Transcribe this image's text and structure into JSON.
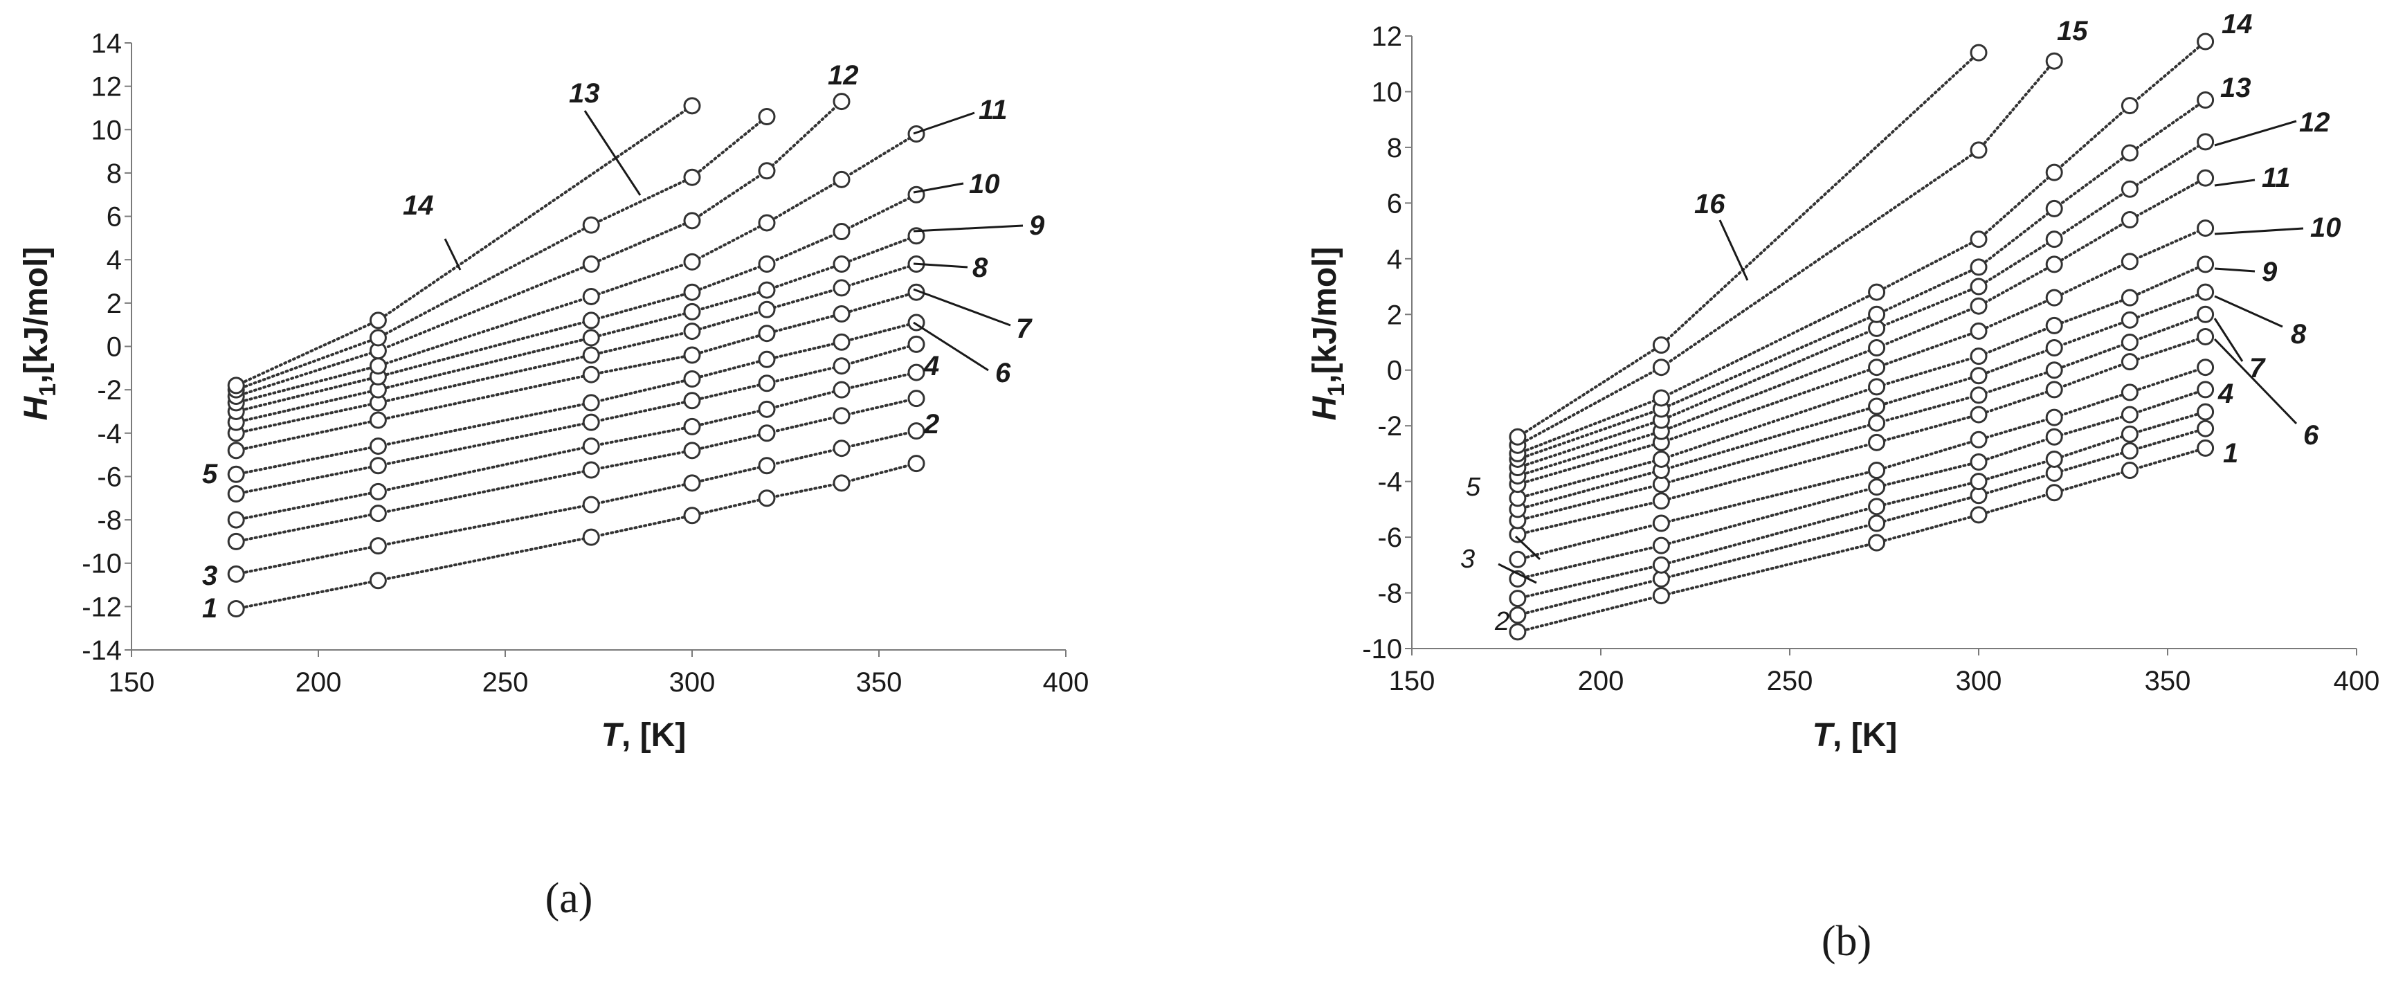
{
  "chart_data": [
    {
      "type": "scatter",
      "panel": "(a)",
      "title": "",
      "xlabel_var": "T",
      "xlabel_unit": ", [K]",
      "ylabel_var": "H",
      "ylabel_sub": "1",
      "ylabel_unit": ",[kJ/mol]",
      "xlim": [
        150,
        400
      ],
      "ylim": [
        -14,
        14
      ],
      "xticks": [
        "150",
        "200",
        "250",
        "300",
        "350",
        "400"
      ],
      "yticks": [
        "-14",
        "-12",
        "-10",
        "-8",
        "-6",
        "-4",
        "-2",
        "0",
        "2",
        "4",
        "6",
        "8",
        "10",
        "12",
        "14"
      ],
      "series": [
        {
          "name": "1",
          "x": [
            178,
            216,
            273,
            300,
            320,
            340,
            360
          ],
          "y": [
            -12.1,
            -10.8,
            -8.8,
            -7.8,
            -7.0,
            -6.3,
            -5.4
          ]
        },
        {
          "name": "2",
          "x": [
            178,
            216,
            273,
            300,
            320,
            340,
            360
          ],
          "y": [
            -10.5,
            -9.2,
            -7.3,
            -6.3,
            -5.5,
            -4.7,
            -3.9
          ]
        },
        {
          "name": "3",
          "x": [
            178,
            216,
            273,
            300,
            320,
            340,
            360
          ],
          "y": [
            -9.0,
            -7.7,
            -5.7,
            -4.8,
            -4.0,
            -3.2,
            -2.4
          ]
        },
        {
          "name": "4",
          "x": [
            178,
            216,
            273,
            300,
            320,
            340,
            360
          ],
          "y": [
            -8.0,
            -6.7,
            -4.6,
            -3.7,
            -2.9,
            -2.0,
            -1.2
          ]
        },
        {
          "name": "5",
          "x": [
            178,
            216,
            273,
            300,
            320,
            340,
            360
          ],
          "y": [
            -6.8,
            -5.5,
            -3.5,
            -2.5,
            -1.7,
            -0.9,
            0.1
          ]
        },
        {
          "name": "6",
          "x": [
            178,
            216,
            273,
            300,
            320,
            340,
            360
          ],
          "y": [
            -5.9,
            -4.6,
            -2.6,
            -1.5,
            -0.6,
            0.2,
            1.1
          ]
        },
        {
          "name": "7",
          "x": [
            178,
            216,
            273,
            300,
            320,
            340,
            360
          ],
          "y": [
            -4.8,
            -3.4,
            -1.3,
            -0.4,
            0.6,
            1.5,
            2.5
          ]
        },
        {
          "name": "8",
          "x": [
            178,
            216,
            273,
            300,
            320,
            340,
            360
          ],
          "y": [
            -4.0,
            -2.6,
            -0.4,
            0.7,
            1.7,
            2.7,
            3.8
          ]
        },
        {
          "name": "9",
          "x": [
            178,
            216,
            273,
            300,
            320,
            340,
            360
          ],
          "y": [
            -3.5,
            -2.0,
            0.4,
            1.6,
            2.6,
            3.8,
            5.1
          ]
        },
        {
          "name": "10",
          "x": [
            178,
            216,
            273,
            300,
            320,
            340,
            360
          ],
          "y": [
            -3.0,
            -1.4,
            1.2,
            2.5,
            3.8,
            5.3,
            7.0
          ]
        },
        {
          "name": "11",
          "x": [
            178,
            216,
            273,
            300,
            320,
            340,
            360
          ],
          "y": [
            -2.6,
            -0.9,
            2.3,
            3.9,
            5.7,
            7.7,
            9.8
          ]
        },
        {
          "name": "12",
          "x": [
            178,
            216,
            273,
            300,
            320,
            340
          ],
          "y": [
            -2.3,
            -0.2,
            3.8,
            5.8,
            8.1,
            11.3
          ]
        },
        {
          "name": "13",
          "x": [
            178,
            216,
            273,
            300,
            320
          ],
          "y": [
            -2.0,
            0.4,
            5.6,
            7.8,
            10.6
          ]
        },
        {
          "name": "14",
          "x": [
            178,
            216,
            300
          ],
          "y": [
            -1.8,
            1.2,
            11.1
          ]
        }
      ]
    },
    {
      "type": "scatter",
      "panel": "(b)",
      "title": "",
      "xlabel_var": "T",
      "xlabel_unit": ", [K]",
      "ylabel_var": "H",
      "ylabel_sub": "1",
      "ylabel_unit": ",[kJ/mol]",
      "xlim": [
        150,
        400
      ],
      "ylim": [
        -10,
        12
      ],
      "xticks": [
        "150",
        "200",
        "250",
        "300",
        "350",
        "400"
      ],
      "yticks": [
        "-10",
        "-8",
        "-6",
        "-4",
        "-2",
        "0",
        "2",
        "4",
        "6",
        "8",
        "10",
        "12"
      ],
      "series": [
        {
          "name": "1",
          "x": [
            178,
            216,
            273,
            300,
            320,
            340,
            360
          ],
          "y": [
            -9.4,
            -8.1,
            -6.2,
            -5.2,
            -4.4,
            -3.6,
            -2.8
          ]
        },
        {
          "name": "2",
          "x": [
            178,
            216,
            273,
            300,
            320,
            340,
            360
          ],
          "y": [
            -8.8,
            -7.5,
            -5.5,
            -4.5,
            -3.7,
            -2.9,
            -2.1
          ]
        },
        {
          "name": "3",
          "x": [
            178,
            216,
            273,
            300,
            320,
            340,
            360
          ],
          "y": [
            -8.2,
            -7.0,
            -4.9,
            -4.0,
            -3.2,
            -2.3,
            -1.5
          ]
        },
        {
          "name": "4",
          "x": [
            178,
            216,
            273,
            300,
            320,
            340,
            360
          ],
          "y": [
            -7.5,
            -6.3,
            -4.2,
            -3.3,
            -2.4,
            -1.6,
            -0.7
          ]
        },
        {
          "name": "5",
          "x": [
            178,
            216,
            273,
            300,
            320,
            340,
            360
          ],
          "y": [
            -6.8,
            -5.5,
            -3.6,
            -2.5,
            -1.7,
            -0.8,
            0.1
          ]
        },
        {
          "name": "6",
          "x": [
            178,
            216,
            273,
            300,
            320,
            340,
            360
          ],
          "y": [
            -5.9,
            -4.7,
            -2.6,
            -1.6,
            -0.7,
            0.3,
            1.2
          ]
        },
        {
          "name": "7",
          "x": [
            178,
            216,
            273,
            300,
            320,
            340,
            360
          ],
          "y": [
            -5.4,
            -4.1,
            -1.9,
            -0.9,
            0.0,
            1.0,
            2.0
          ]
        },
        {
          "name": "8",
          "x": [
            178,
            216,
            273,
            300,
            320,
            340,
            360
          ],
          "y": [
            -5.0,
            -3.6,
            -1.3,
            -0.2,
            0.8,
            1.8,
            2.8
          ]
        },
        {
          "name": "9",
          "x": [
            178,
            216,
            273,
            300,
            320,
            340,
            360
          ],
          "y": [
            -4.6,
            -3.2,
            -0.6,
            0.5,
            1.6,
            2.6,
            3.8
          ]
        },
        {
          "name": "10",
          "x": [
            178,
            216,
            273,
            300,
            320,
            340,
            360
          ],
          "y": [
            -4.1,
            -2.6,
            0.1,
            1.4,
            2.6,
            3.9,
            5.1
          ]
        },
        {
          "name": "11",
          "x": [
            178,
            216,
            273,
            300,
            320,
            340,
            360
          ],
          "y": [
            -3.8,
            -2.2,
            0.8,
            2.3,
            3.8,
            5.4,
            6.9
          ]
        },
        {
          "name": "12",
          "x": [
            178,
            216,
            273,
            300,
            320,
            340,
            360
          ],
          "y": [
            -3.5,
            -1.8,
            1.5,
            3.0,
            4.7,
            6.5,
            8.2
          ]
        },
        {
          "name": "13",
          "x": [
            178,
            216,
            273,
            300,
            320,
            340,
            360
          ],
          "y": [
            -3.2,
            -1.4,
            2.0,
            3.7,
            5.8,
            7.8,
            9.7
          ]
        },
        {
          "name": "14",
          "x": [
            178,
            216,
            273,
            300,
            320,
            340,
            360
          ],
          "y": [
            -3.0,
            -1.0,
            2.8,
            4.7,
            7.1,
            9.5,
            11.8
          ]
        },
        {
          "name": "15",
          "x": [
            178,
            216,
            300,
            320
          ],
          "y": [
            -2.7,
            0.1,
            7.9,
            11.1
          ]
        },
        {
          "name": "16",
          "x": [
            178,
            216,
            300
          ],
          "y": [
            -2.4,
            0.9,
            11.4
          ]
        }
      ]
    }
  ]
}
